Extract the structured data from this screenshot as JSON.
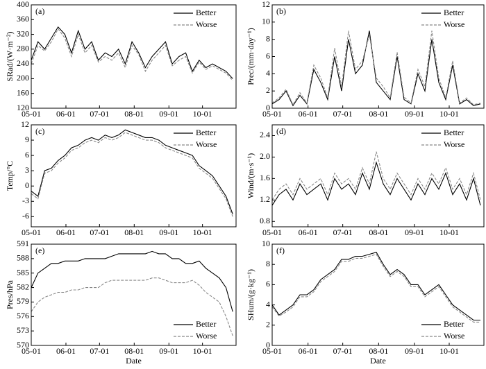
{
  "chart_data": [
    {
      "type": "line",
      "panel_label": "(a)",
      "ylabel": "SRad/(W·m⁻²)",
      "legend": "upper right",
      "x": [
        "05-01",
        "05-07",
        "05-13",
        "05-19",
        "05-25",
        "05-31",
        "06-06",
        "06-12",
        "06-18",
        "06-24",
        "06-30",
        "07-06",
        "07-12",
        "07-18",
        "07-24",
        "07-30",
        "08-05",
        "08-11",
        "08-17",
        "08-23",
        "08-29",
        "09-04",
        "09-10",
        "09-16",
        "09-22",
        "09-28",
        "10-04",
        "10-10",
        "10-16",
        "10-22",
        "10-28"
      ],
      "xlim": [
        "05-01",
        "10-31"
      ],
      "xticks": [
        "05-01",
        "06-01",
        "07-01",
        "08-01",
        "09-01",
        "10-01"
      ],
      "ylim": [
        120,
        400
      ],
      "yticks": [
        120,
        160,
        200,
        240,
        280,
        320,
        360,
        400
      ],
      "series": [
        {
          "name": "Better",
          "color": "#000000",
          "values": [
            250,
            300,
            280,
            310,
            340,
            320,
            270,
            330,
            280,
            300,
            250,
            270,
            260,
            280,
            240,
            300,
            270,
            230,
            260,
            280,
            300,
            240,
            260,
            270,
            220,
            250,
            230,
            240,
            230,
            220,
            200
          ]
        },
        {
          "name": "Worse",
          "color": "#888888",
          "values": [
            240,
            290,
            275,
            300,
            335,
            310,
            260,
            320,
            270,
            290,
            245,
            260,
            250,
            270,
            230,
            290,
            265,
            220,
            250,
            270,
            290,
            235,
            250,
            260,
            215,
            245,
            225,
            235,
            225,
            215,
            195
          ]
        }
      ]
    },
    {
      "type": "line",
      "panel_label": "(b)",
      "ylabel": "Prec/(mm·day⁻¹)",
      "legend": "upper right",
      "x": [
        "05-01",
        "05-07",
        "05-13",
        "05-19",
        "05-25",
        "05-31",
        "06-06",
        "06-12",
        "06-18",
        "06-24",
        "06-30",
        "07-06",
        "07-12",
        "07-18",
        "07-24",
        "07-30",
        "08-05",
        "08-11",
        "08-17",
        "08-23",
        "08-29",
        "09-04",
        "09-10",
        "09-16",
        "09-22",
        "09-28",
        "10-04",
        "10-10",
        "10-16",
        "10-22",
        "10-28"
      ],
      "xlim": [
        "05-01",
        "10-31"
      ],
      "xticks": [
        "05-01",
        "06-01",
        "07-01",
        "08-01",
        "09-01",
        "10-01"
      ],
      "ylim": [
        0,
        12
      ],
      "yticks": [
        0,
        2,
        4,
        6,
        8,
        10,
        12
      ],
      "series": [
        {
          "name": "Better",
          "color": "#000000",
          "values": [
            0.5,
            1,
            2,
            0.3,
            1.5,
            0.5,
            4.5,
            3,
            1,
            6,
            2,
            8,
            4,
            5,
            9,
            3,
            2,
            1,
            6,
            1,
            0.5,
            4,
            2,
            8,
            3,
            1,
            5,
            0.5,
            1,
            0.3,
            0.5
          ]
        },
        {
          "name": "Worse",
          "color": "#888888",
          "values": [
            0.6,
            1.2,
            2.2,
            0.4,
            1.8,
            0.6,
            5,
            3.5,
            1.2,
            7,
            2.5,
            9,
            4.5,
            5.5,
            8.5,
            3.5,
            2.5,
            1.2,
            6.5,
            1.3,
            0.6,
            4.5,
            2.5,
            9,
            3.5,
            1.2,
            5.5,
            0.6,
            1.2,
            0.4,
            0.6
          ]
        }
      ]
    },
    {
      "type": "line",
      "panel_label": "(c)",
      "ylabel": "Temp/°C",
      "legend": "upper right",
      "x": [
        "05-01",
        "05-07",
        "05-13",
        "05-19",
        "05-25",
        "05-31",
        "06-06",
        "06-12",
        "06-18",
        "06-24",
        "06-30",
        "07-06",
        "07-12",
        "07-18",
        "07-24",
        "07-30",
        "08-05",
        "08-11",
        "08-17",
        "08-23",
        "08-29",
        "09-04",
        "09-10",
        "09-16",
        "09-22",
        "09-28",
        "10-04",
        "10-10",
        "10-16",
        "10-22",
        "10-28"
      ],
      "xlim": [
        "05-01",
        "10-31"
      ],
      "xticks": [
        "05-01",
        "06-01",
        "07-01",
        "08-01",
        "09-01",
        "10-01"
      ],
      "ylim": [
        -8,
        12
      ],
      "yticks": [
        -6,
        -3,
        0,
        3,
        6,
        9,
        12
      ],
      "series": [
        {
          "name": "Better",
          "color": "#000000",
          "values": [
            -1,
            -2,
            3,
            3.5,
            5,
            6,
            7.5,
            8,
            9,
            9.5,
            9,
            10,
            9.5,
            10,
            11,
            10.5,
            10,
            9.5,
            9.5,
            9,
            8,
            7.5,
            7,
            6.5,
            6,
            4,
            3,
            2,
            0,
            -2,
            -5.5
          ]
        },
        {
          "name": "Worse",
          "color": "#888888",
          "values": [
            -1.5,
            -2.5,
            2.5,
            3,
            4.5,
            5.5,
            7,
            7.5,
            8.5,
            9,
            8.5,
            9.5,
            9,
            9.5,
            10.5,
            10,
            9.5,
            9,
            9,
            8.5,
            7.5,
            7,
            6.5,
            6,
            5.5,
            3.5,
            2.5,
            1.5,
            -0.5,
            -2.5,
            -6
          ]
        }
      ]
    },
    {
      "type": "line",
      "panel_label": "(d)",
      "ylabel": "Wind/(m·s⁻¹)",
      "legend": "upper right",
      "x": [
        "05-01",
        "05-07",
        "05-13",
        "05-19",
        "05-25",
        "05-31",
        "06-06",
        "06-12",
        "06-18",
        "06-24",
        "06-30",
        "07-06",
        "07-12",
        "07-18",
        "07-24",
        "07-30",
        "08-05",
        "08-11",
        "08-17",
        "08-23",
        "08-29",
        "09-04",
        "09-10",
        "09-16",
        "09-22",
        "09-28",
        "10-04",
        "10-10",
        "10-16",
        "10-22",
        "10-28"
      ],
      "xlim": [
        "05-01",
        "10-31"
      ],
      "xticks": [
        "05-01",
        "06-01",
        "07-01",
        "08-01",
        "09-01",
        "10-01"
      ],
      "ylim": [
        0.7,
        2.6
      ],
      "yticks": [
        0.8,
        1.2,
        1.6,
        {
          "value": 2,
          "label": "2.0"
        },
        2.4
      ],
      "series": [
        {
          "name": "Better",
          "color": "#000000",
          "values": [
            1.1,
            1.3,
            1.4,
            1.2,
            1.5,
            1.3,
            1.4,
            1.5,
            1.2,
            1.6,
            1.4,
            1.5,
            1.3,
            1.7,
            1.4,
            1.9,
            1.5,
            1.3,
            1.6,
            1.4,
            1.2,
            1.5,
            1.3,
            1.6,
            1.4,
            1.7,
            1.3,
            1.5,
            1.2,
            1.6,
            1.1
          ]
        },
        {
          "name": "Worse",
          "color": "#888888",
          "values": [
            1.2,
            1.4,
            1.5,
            1.3,
            1.6,
            1.4,
            1.5,
            1.6,
            1.3,
            1.7,
            1.5,
            1.6,
            1.4,
            1.8,
            1.5,
            2.1,
            1.6,
            1.4,
            1.7,
            1.5,
            1.3,
            1.6,
            1.4,
            1.7,
            1.5,
            1.8,
            1.4,
            1.6,
            1.3,
            1.7,
            1.2
          ]
        }
      ]
    },
    {
      "type": "line",
      "panel_label": "(e)",
      "ylabel": "Pres/hPa",
      "xlabel": "Date",
      "legend": "lower right",
      "x": [
        "05-01",
        "05-07",
        "05-13",
        "05-19",
        "05-25",
        "05-31",
        "06-06",
        "06-12",
        "06-18",
        "06-24",
        "06-30",
        "07-06",
        "07-12",
        "07-18",
        "07-24",
        "07-30",
        "08-05",
        "08-11",
        "08-17",
        "08-23",
        "08-29",
        "09-04",
        "09-10",
        "09-16",
        "09-22",
        "09-28",
        "10-04",
        "10-10",
        "10-16",
        "10-22",
        "10-28"
      ],
      "xlim": [
        "05-01",
        "10-31"
      ],
      "xticks": [
        "05-01",
        "06-01",
        "07-01",
        "08-01",
        "09-01",
        "10-01"
      ],
      "ylim": [
        570,
        591
      ],
      "yticks": [
        570,
        573,
        576,
        579,
        582,
        585,
        588,
        591
      ],
      "series": [
        {
          "name": "Better",
          "color": "#000000",
          "values": [
            582,
            585,
            586,
            587,
            587,
            587.5,
            587.5,
            587.5,
            588,
            588,
            588,
            588,
            588.5,
            589,
            589,
            589,
            589,
            589,
            589.5,
            589,
            589,
            588,
            588,
            587,
            587,
            587.5,
            586,
            585,
            584,
            582,
            577
          ]
        },
        {
          "name": "Worse",
          "color": "#888888",
          "values": [
            577,
            579,
            580,
            580.5,
            581,
            581,
            581.5,
            581.5,
            582,
            582,
            582,
            583,
            583.5,
            583.5,
            583.5,
            583.5,
            583.5,
            583.5,
            584,
            584,
            583.5,
            583,
            583,
            583,
            583.5,
            582.5,
            581,
            580,
            579,
            576,
            572
          ]
        }
      ]
    },
    {
      "type": "line",
      "panel_label": "(f)",
      "ylabel": "SHum/(g·kg⁻¹)",
      "xlabel": "Date",
      "legend": "lower right",
      "x": [
        "05-01",
        "05-07",
        "05-13",
        "05-19",
        "05-25",
        "05-31",
        "06-06",
        "06-12",
        "06-18",
        "06-24",
        "06-30",
        "07-06",
        "07-12",
        "07-18",
        "07-24",
        "07-30",
        "08-05",
        "08-11",
        "08-17",
        "08-23",
        "08-29",
        "09-04",
        "09-10",
        "09-16",
        "09-22",
        "09-28",
        "10-04",
        "10-10",
        "10-16",
        "10-22",
        "10-28"
      ],
      "xlim": [
        "05-01",
        "10-31"
      ],
      "xticks": [
        "05-01",
        "06-01",
        "07-01",
        "08-01",
        "09-01",
        "10-01"
      ],
      "ylim": [
        0,
        10
      ],
      "yticks": [
        0,
        2,
        4,
        6,
        8,
        10
      ],
      "series": [
        {
          "name": "Better",
          "color": "#000000",
          "values": [
            4,
            3,
            3.5,
            4,
            5,
            5,
            5.5,
            6.5,
            7,
            7.5,
            8.5,
            8.5,
            8.8,
            8.8,
            9,
            9.2,
            8,
            7,
            7.5,
            7,
            6,
            6,
            5,
            5.5,
            6,
            5,
            4,
            3.5,
            3,
            2.5,
            2.5
          ]
        },
        {
          "name": "Worse",
          "color": "#888888",
          "values": [
            3.8,
            2.9,
            3.3,
            3.8,
            4.8,
            4.8,
            5.3,
            6.3,
            6.8,
            7.3,
            8.3,
            8.3,
            8.6,
            8.6,
            8.8,
            9,
            7.8,
            6.8,
            7.3,
            6.8,
            5.8,
            5.8,
            4.8,
            5.3,
            5.8,
            4.8,
            3.8,
            3.3,
            2.8,
            2.3,
            2.3
          ]
        }
      ]
    }
  ]
}
